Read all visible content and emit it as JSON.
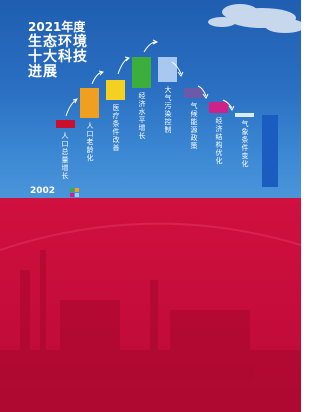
{
  "title": {
    "year": "2021年度",
    "lines": [
      "生态环境",
      "十大科技",
      "进展"
    ]
  },
  "factors": [
    "人口总量增长",
    "人口老龄化",
    "医疗条件改善",
    "经济水平增长",
    "大气污染控制",
    "气候能源政策",
    "经济结构优化",
    "气象条件变化"
  ],
  "start_year": "2002"
}
